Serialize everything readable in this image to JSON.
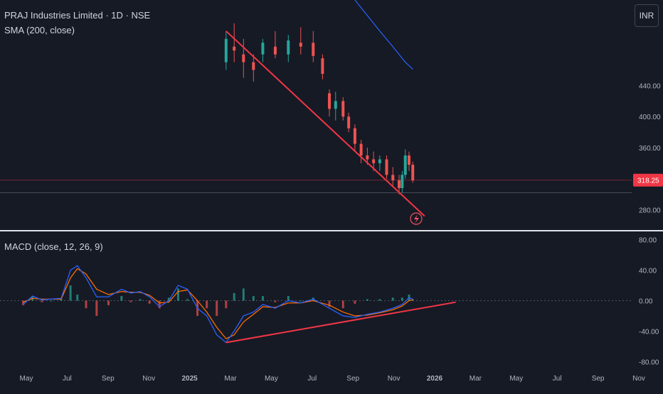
{
  "header": {
    "title": "PRAJ Industries Limited · 1D · NSE",
    "sma_label": "SMA (200, close)",
    "macd_label": "MACD (close, 12, 26, 9)",
    "currency": "INR",
    "last_price": "318.25"
  },
  "colors": {
    "background": "#161a25",
    "up_bar": "#26a69a",
    "down_bar": "#ef5350",
    "sma": "#2962ff",
    "macd": "#2962ff",
    "signal": "#ff6d00",
    "trendline": "#f23645",
    "price_tag": "#f23645"
  },
  "chart_data": [
    {
      "type": "candlestick",
      "title": "PRAJ Industries Limited · 1D · NSE",
      "ylim": [
        255,
        550
      ],
      "y_ticks": [
        "440.00",
        "400.00",
        "360.00",
        "320.00",
        "280.00"
      ],
      "y_tick_values": [
        440,
        400,
        360,
        320,
        280
      ],
      "x_ticks": [
        "May",
        "Jul",
        "Sep",
        "Nov",
        "2025",
        "Mar",
        "May",
        "Jul",
        "Sep",
        "Nov",
        "2026",
        "Mar",
        "May",
        "Jul",
        "Sep",
        "Nov"
      ],
      "series": [
        {
          "name": "price",
          "points": [
            {
              "date": "2025-02-25",
              "open": 470,
              "high": 510,
              "low": 460,
              "close": 500
            },
            {
              "date": "2025-03-10",
              "open": 490,
              "high": 520,
              "low": 470,
              "close": 485
            },
            {
              "date": "2025-03-25",
              "open": 480,
              "high": 500,
              "low": 450,
              "close": 470
            },
            {
              "date": "2025-04-10",
              "open": 470,
              "high": 480,
              "low": 445,
              "close": 460
            },
            {
              "date": "2025-04-25",
              "open": 480,
              "high": 500,
              "low": 470,
              "close": 495
            },
            {
              "date": "2025-05-15",
              "open": 490,
              "high": 510,
              "low": 475,
              "close": 480
            },
            {
              "date": "2025-06-05",
              "open": 480,
              "high": 505,
              "low": 470,
              "close": 498
            },
            {
              "date": "2025-06-25",
              "open": 495,
              "high": 515,
              "low": 480,
              "close": 490
            },
            {
              "date": "2025-07-15",
              "open": 495,
              "high": 510,
              "low": 470,
              "close": 478
            },
            {
              "date": "2025-07-30",
              "open": 475,
              "high": 480,
              "low": 448,
              "close": 455
            },
            {
              "date": "2025-08-10",
              "open": 430,
              "high": 435,
              "low": 400,
              "close": 410
            },
            {
              "date": "2025-08-20",
              "open": 410,
              "high": 432,
              "low": 395,
              "close": 420
            },
            {
              "date": "2025-09-01",
              "open": 420,
              "high": 425,
              "low": 395,
              "close": 400
            },
            {
              "date": "2025-09-10",
              "open": 400,
              "high": 405,
              "low": 380,
              "close": 385
            },
            {
              "date": "2025-09-20",
              "open": 385,
              "high": 390,
              "low": 355,
              "close": 365
            },
            {
              "date": "2025-09-30",
              "open": 365,
              "high": 370,
              "low": 340,
              "close": 350
            },
            {
              "date": "2025-10-10",
              "open": 350,
              "high": 360,
              "low": 338,
              "close": 345
            },
            {
              "date": "2025-10-20",
              "open": 345,
              "high": 355,
              "low": 330,
              "close": 340
            },
            {
              "date": "2025-10-30",
              "open": 340,
              "high": 350,
              "low": 330,
              "close": 345
            },
            {
              "date": "2025-11-10",
              "open": 345,
              "high": 350,
              "low": 320,
              "close": 325
            },
            {
              "date": "2025-11-20",
              "open": 325,
              "high": 335,
              "low": 310,
              "close": 318
            },
            {
              "date": "2025-11-30",
              "open": 318,
              "high": 325,
              "low": 300,
              "close": 308
            },
            {
              "date": "2025-12-05",
              "open": 308,
              "high": 330,
              "low": 302,
              "close": 325
            },
            {
              "date": "2025-12-10",
              "open": 325,
              "high": 358,
              "low": 320,
              "close": 350
            },
            {
              "date": "2025-12-16",
              "open": 350,
              "high": 355,
              "low": 330,
              "close": 338
            },
            {
              "date": "2025-12-22",
              "open": 338,
              "high": 342,
              "low": 315,
              "close": 318
            }
          ]
        },
        {
          "name": "SMA (200, close)",
          "points": [
            {
              "date": "2025-09-20",
              "value": 550
            },
            {
              "date": "2025-10-10",
              "value": 530
            },
            {
              "date": "2025-10-30",
              "value": 510
            },
            {
              "date": "2025-11-20",
              "value": 490
            },
            {
              "date": "2025-12-10",
              "value": 470
            },
            {
              "date": "2025-12-22",
              "value": 461
            }
          ]
        }
      ],
      "trendline": [
        {
          "date": "2025-02-25",
          "value": 510
        },
        {
          "date": "2026-01-10",
          "value": 272
        }
      ]
    },
    {
      "type": "line",
      "title": "MACD (close, 12, 26, 9)",
      "ylim": [
        -90,
        90
      ],
      "y_ticks": [
        "80.00",
        "40.00",
        "0.00",
        "-40.00",
        "-80.00"
      ],
      "y_tick_values": [
        80,
        40,
        0,
        -40,
        -80
      ],
      "series": [
        {
          "name": "MACD",
          "points": [
            {
              "date": "2024-04-05",
              "value": -5
            },
            {
              "date": "2024-04-20",
              "value": 6
            },
            {
              "date": "2024-05-05",
              "value": 1
            },
            {
              "date": "2024-05-20",
              "value": 2
            },
            {
              "date": "2024-06-05",
              "value": 3
            },
            {
              "date": "2024-06-20",
              "value": 40
            },
            {
              "date": "2024-07-01",
              "value": 46
            },
            {
              "date": "2024-07-15",
              "value": 30
            },
            {
              "date": "2024-08-01",
              "value": 5
            },
            {
              "date": "2024-08-20",
              "value": 5
            },
            {
              "date": "2024-09-10",
              "value": 15
            },
            {
              "date": "2024-09-25",
              "value": 10
            },
            {
              "date": "2024-10-10",
              "value": 12
            },
            {
              "date": "2024-10-25",
              "value": 5
            },
            {
              "date": "2024-11-10",
              "value": -8
            },
            {
              "date": "2024-11-25",
              "value": 0
            },
            {
              "date": "2024-12-10",
              "value": 20
            },
            {
              "date": "2024-12-25",
              "value": 15
            },
            {
              "date": "2025-01-10",
              "value": -10
            },
            {
              "date": "2025-01-25",
              "value": -20
            },
            {
              "date": "2025-02-10",
              "value": -45
            },
            {
              "date": "2025-02-25",
              "value": -55
            },
            {
              "date": "2025-03-10",
              "value": -40
            },
            {
              "date": "2025-03-25",
              "value": -20
            },
            {
              "date": "2025-04-10",
              "value": -15
            },
            {
              "date": "2025-04-25",
              "value": -5
            },
            {
              "date": "2025-05-15",
              "value": -10
            },
            {
              "date": "2025-06-05",
              "value": 0
            },
            {
              "date": "2025-06-25",
              "value": -3
            },
            {
              "date": "2025-07-15",
              "value": 2
            },
            {
              "date": "2025-08-10",
              "value": -10
            },
            {
              "date": "2025-09-01",
              "value": -20
            },
            {
              "date": "2025-09-20",
              "value": -22
            },
            {
              "date": "2025-10-10",
              "value": -18
            },
            {
              "date": "2025-10-30",
              "value": -15
            },
            {
              "date": "2025-11-20",
              "value": -10
            },
            {
              "date": "2025-12-05",
              "value": -5
            },
            {
              "date": "2025-12-16",
              "value": 4
            },
            {
              "date": "2025-12-22",
              "value": 2
            }
          ]
        },
        {
          "name": "Signal",
          "points": [
            {
              "date": "2024-04-05",
              "value": -2
            },
            {
              "date": "2024-04-20",
              "value": 3
            },
            {
              "date": "2024-05-05",
              "value": 2
            },
            {
              "date": "2024-05-20",
              "value": 2
            },
            {
              "date": "2024-06-05",
              "value": 2
            },
            {
              "date": "2024-06-20",
              "value": 30
            },
            {
              "date": "2024-07-01",
              "value": 42
            },
            {
              "date": "2024-07-15",
              "value": 35
            },
            {
              "date": "2024-08-01",
              "value": 15
            },
            {
              "date": "2024-08-20",
              "value": 8
            },
            {
              "date": "2024-09-10",
              "value": 12
            },
            {
              "date": "2024-09-25",
              "value": 11
            },
            {
              "date": "2024-10-10",
              "value": 11
            },
            {
              "date": "2024-10-25",
              "value": 7
            },
            {
              "date": "2024-11-10",
              "value": -3
            },
            {
              "date": "2024-11-25",
              "value": -2
            },
            {
              "date": "2024-12-10",
              "value": 12
            },
            {
              "date": "2024-12-25",
              "value": 14
            },
            {
              "date": "2025-01-10",
              "value": 0
            },
            {
              "date": "2025-01-25",
              "value": -15
            },
            {
              "date": "2025-02-10",
              "value": -35
            },
            {
              "date": "2025-02-25",
              "value": -50
            },
            {
              "date": "2025-03-10",
              "value": -45
            },
            {
              "date": "2025-03-25",
              "value": -28
            },
            {
              "date": "2025-04-10",
              "value": -18
            },
            {
              "date": "2025-04-25",
              "value": -8
            },
            {
              "date": "2025-05-15",
              "value": -9
            },
            {
              "date": "2025-06-05",
              "value": -3
            },
            {
              "date": "2025-06-25",
              "value": -3
            },
            {
              "date": "2025-07-15",
              "value": 0
            },
            {
              "date": "2025-08-10",
              "value": -6
            },
            {
              "date": "2025-09-01",
              "value": -15
            },
            {
              "date": "2025-09-20",
              "value": -20
            },
            {
              "date": "2025-10-10",
              "value": -19
            },
            {
              "date": "2025-10-30",
              "value": -16
            },
            {
              "date": "2025-11-20",
              "value": -12
            },
            {
              "date": "2025-12-05",
              "value": -7
            },
            {
              "date": "2025-12-16",
              "value": 0
            },
            {
              "date": "2025-12-22",
              "value": 1
            }
          ]
        }
      ],
      "trendline": [
        {
          "date": "2025-02-25",
          "value": -55
        },
        {
          "date": "2026-03-01",
          "value": -2
        }
      ]
    }
  ]
}
